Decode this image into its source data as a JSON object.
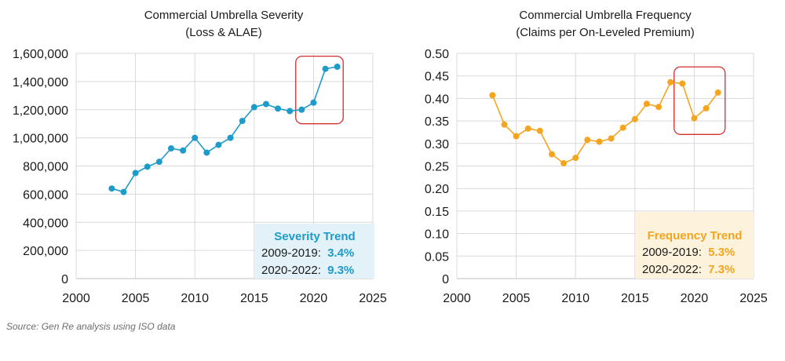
{
  "chart_data": [
    {
      "type": "line",
      "title": "Commercial Umbrella Severity",
      "subtitle": "(Loss & ALAE)",
      "xlabel": "",
      "ylabel": "",
      "xlim": [
        2000,
        2025
      ],
      "x_ticks": [
        "2000",
        "2005",
        "2010",
        "2015",
        "2020",
        "2025"
      ],
      "ylim": [
        0,
        1600000
      ],
      "y_ticks": [
        "0",
        "200,000",
        "400,000",
        "600,000",
        "800,000",
        "1,000,000",
        "1,200,000",
        "1,400,000",
        "1,600,000"
      ],
      "grid": true,
      "color": "#1e9bc8",
      "series": [
        {
          "name": "Severity",
          "x": [
            2003,
            2004,
            2005,
            2006,
            2007,
            2008,
            2009,
            2010,
            2011,
            2012,
            2013,
            2014,
            2015,
            2016,
            2017,
            2018,
            2019,
            2020,
            2021,
            2022
          ],
          "values": [
            640000,
            615000,
            750000,
            795000,
            830000,
            925000,
            910000,
            1000000,
            895000,
            950000,
            1000000,
            1120000,
            1218000,
            1240000,
            1208000,
            1190000,
            1200000,
            1250000,
            1490000,
            1505000
          ]
        }
      ],
      "highlight": {
        "x_range": [
          2018.5,
          2022.5
        ],
        "y_range": [
          1100000,
          1580000
        ],
        "color": "#d32f2f"
      },
      "trend_box": {
        "title": "Severity Trend",
        "bg": "#e3f1f8",
        "accent": "#1e9bc8",
        "rows": [
          {
            "label": "2009-2019:",
            "value": "3.4%"
          },
          {
            "label": "2020-2022:",
            "value": "9.3%"
          }
        ]
      }
    },
    {
      "type": "line",
      "title": "Commercial Umbrella Frequency",
      "subtitle": "(Claims per On-Leveled Premium)",
      "xlabel": "",
      "ylabel": "",
      "xlim": [
        2000,
        2025
      ],
      "x_ticks": [
        "2000",
        "2005",
        "2010",
        "2015",
        "2020",
        "2025"
      ],
      "ylim": [
        0,
        0.5
      ],
      "y_ticks": [
        "0",
        "0.05",
        "0.10",
        "0.15",
        "0.20",
        "0.25",
        "0.30",
        "0.35",
        "0.40",
        "0.45",
        "0.50"
      ],
      "grid": true,
      "color": "#f4a51f",
      "series": [
        {
          "name": "Frequency",
          "x": [
            2003,
            2004,
            2005,
            2006,
            2007,
            2008,
            2009,
            2010,
            2011,
            2012,
            2013,
            2014,
            2015,
            2016,
            2017,
            2018,
            2019,
            2020,
            2021,
            2022
          ],
          "values": [
            0.407,
            0.342,
            0.316,
            0.333,
            0.328,
            0.276,
            0.256,
            0.268,
            0.308,
            0.304,
            0.311,
            0.335,
            0.354,
            0.388,
            0.381,
            0.436,
            0.433,
            0.356,
            0.378,
            0.413
          ]
        }
      ],
      "highlight": {
        "x_range": [
          2018.3,
          2022.6
        ],
        "y_range": [
          0.32,
          0.47
        ],
        "color": "#d32f2f"
      },
      "trend_box": {
        "title": "Frequency Trend",
        "bg": "#fdf2dc",
        "accent": "#f4a51f",
        "rows": [
          {
            "label": "2009-2019:",
            "value": "5.3%"
          },
          {
            "label": "2020-2022:",
            "value": "7.3%"
          }
        ]
      }
    }
  ],
  "footer": {
    "source": "Source: Gen Re analysis using ISO data"
  }
}
